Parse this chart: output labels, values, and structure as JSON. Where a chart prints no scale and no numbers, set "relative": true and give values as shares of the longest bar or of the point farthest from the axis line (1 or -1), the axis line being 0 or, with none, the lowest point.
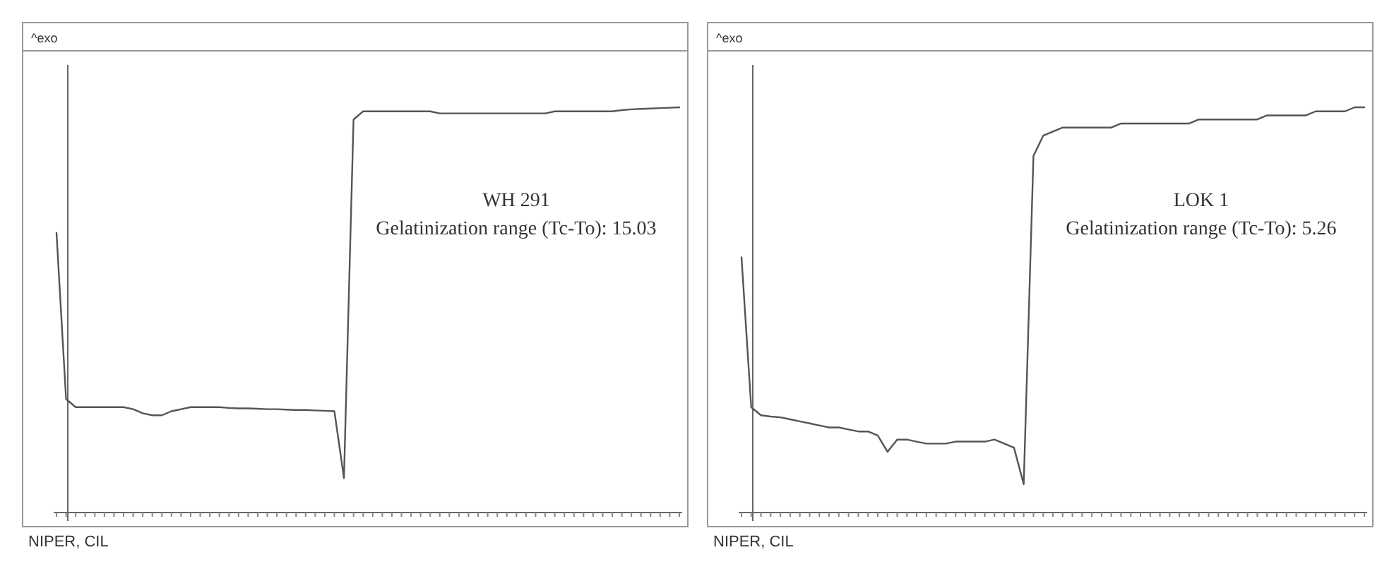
{
  "chart_data": [
    {
      "type": "line",
      "relative": true,
      "ylabel": "^exo",
      "categories": [
        null,
        null,
        null,
        null,
        null,
        null,
        null,
        null,
        null,
        null,
        null,
        null,
        null,
        null,
        null,
        null,
        null,
        null,
        null,
        null,
        null,
        null,
        null,
        null,
        null,
        null,
        null,
        null,
        null,
        null,
        null,
        null,
        null,
        null,
        null,
        null,
        null,
        null,
        null,
        null,
        null,
        null,
        null,
        null,
        null,
        null,
        null,
        null,
        null,
        null,
        null,
        null,
        null,
        null,
        null,
        null,
        null,
        null,
        null,
        null,
        null,
        null,
        null,
        null,
        null,
        null
      ],
      "series": [
        {
          "color": "#555555",
          "values": [
            0.69,
            0.28,
            0.26,
            0.26,
            0.26,
            0.26,
            0.26,
            0.26,
            0.255,
            0.245,
            0.24,
            0.24,
            0.25,
            0.255,
            0.26,
            0.26,
            0.26,
            0.26,
            0.258,
            0.257,
            0.257,
            0.256,
            0.255,
            0.255,
            0.254,
            0.253,
            0.253,
            0.252,
            0.251,
            0.25,
            0.085,
            0.97,
            0.99,
            0.99,
            0.99,
            0.99,
            0.99,
            0.99,
            0.99,
            0.99,
            0.985,
            0.985,
            0.985,
            0.985,
            0.985,
            0.985,
            0.985,
            0.985,
            0.985,
            0.985,
            0.985,
            0.985,
            0.99,
            0.99,
            0.99,
            0.99,
            0.99,
            0.99,
            0.99,
            0.993,
            0.995,
            0.996,
            0.997,
            0.998,
            0.999,
            1
          ]
        }
      ],
      "annotations": [
        "WH 291",
        "Gelatinization range (Tc-To): 15.03",
        "NIPER, CIL"
      ]
    },
    {
      "type": "line",
      "relative": true,
      "ylabel": "^exo",
      "categories": [
        null,
        null,
        null,
        null,
        null,
        null,
        null,
        null,
        null,
        null,
        null,
        null,
        null,
        null,
        null,
        null,
        null,
        null,
        null,
        null,
        null,
        null,
        null,
        null,
        null,
        null,
        null,
        null,
        null,
        null,
        null,
        null,
        null,
        null,
        null,
        null,
        null,
        null,
        null,
        null,
        null,
        null,
        null,
        null,
        null,
        null,
        null,
        null,
        null,
        null,
        null,
        null,
        null,
        null,
        null,
        null,
        null,
        null,
        null,
        null,
        null,
        null,
        null,
        null,
        null
      ],
      "series": [
        {
          "color": "#555555",
          "values": [
            0.63,
            0.26,
            0.24,
            0.237,
            0.235,
            0.23,
            0.225,
            0.22,
            0.215,
            0.21,
            0.21,
            0.205,
            0.2,
            0.2,
            0.19,
            0.15,
            0.18,
            0.18,
            0.175,
            0.17,
            0.17,
            0.17,
            0.175,
            0.175,
            0.175,
            0.175,
            0.18,
            0.17,
            0.16,
            0.07,
            0.88,
            0.93,
            0.94,
            0.95,
            0.95,
            0.95,
            0.95,
            0.95,
            0.95,
            0.96,
            0.96,
            0.96,
            0.96,
            0.96,
            0.96,
            0.96,
            0.96,
            0.97,
            0.97,
            0.97,
            0.97,
            0.97,
            0.97,
            0.97,
            0.98,
            0.98,
            0.98,
            0.98,
            0.98,
            0.99,
            0.99,
            0.99,
            0.99,
            1,
            1
          ]
        }
      ],
      "annotations": [
        "LOK 1",
        "Gelatinization range (Tc-To): 5.26",
        "NIPER, CIL"
      ]
    }
  ]
}
